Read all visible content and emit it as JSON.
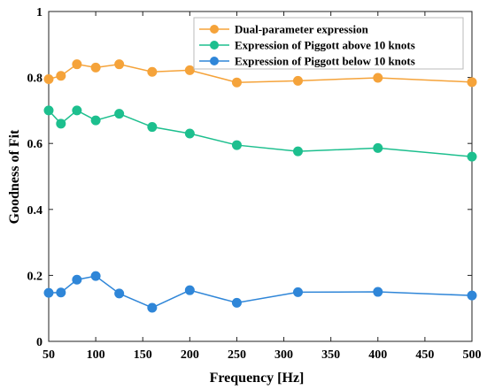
{
  "chart_data": {
    "type": "line",
    "title": "",
    "xlabel": "Frequency [Hz]",
    "ylabel": "Goodness of Fit",
    "xlim": [
      50,
      500
    ],
    "ylim": [
      0,
      1
    ],
    "xticks": [
      50,
      100,
      150,
      200,
      250,
      300,
      350,
      400,
      450,
      500
    ],
    "yticks": [
      0,
      0.2,
      0.4,
      0.6,
      0.8,
      1
    ],
    "ytick_labels": [
      "0",
      "0.2",
      "0.4",
      "0.6",
      "0.8",
      "1"
    ],
    "grid": false,
    "legend_position": "top-right",
    "x": [
      50,
      63,
      80,
      100,
      125,
      160,
      200,
      250,
      315,
      400,
      500
    ],
    "series": [
      {
        "name": "Dual-parameter expression",
        "color": "#f5a33a",
        "values": [
          0.795,
          0.805,
          0.84,
          0.83,
          0.84,
          0.817,
          0.822,
          0.785,
          0.79,
          0.799,
          0.786
        ]
      },
      {
        "name": "Expression of Piggott above 10 knots",
        "color": "#1dbf8e",
        "values": [
          0.7,
          0.66,
          0.7,
          0.67,
          0.69,
          0.65,
          0.63,
          0.595,
          0.576,
          0.586,
          0.56
        ]
      },
      {
        "name": "Expression of Piggott below 10 knots",
        "color": "#2f86d8",
        "values": [
          0.147,
          0.148,
          0.187,
          0.198,
          0.145,
          0.102,
          0.155,
          0.117,
          0.149,
          0.15,
          0.139
        ]
      }
    ]
  }
}
